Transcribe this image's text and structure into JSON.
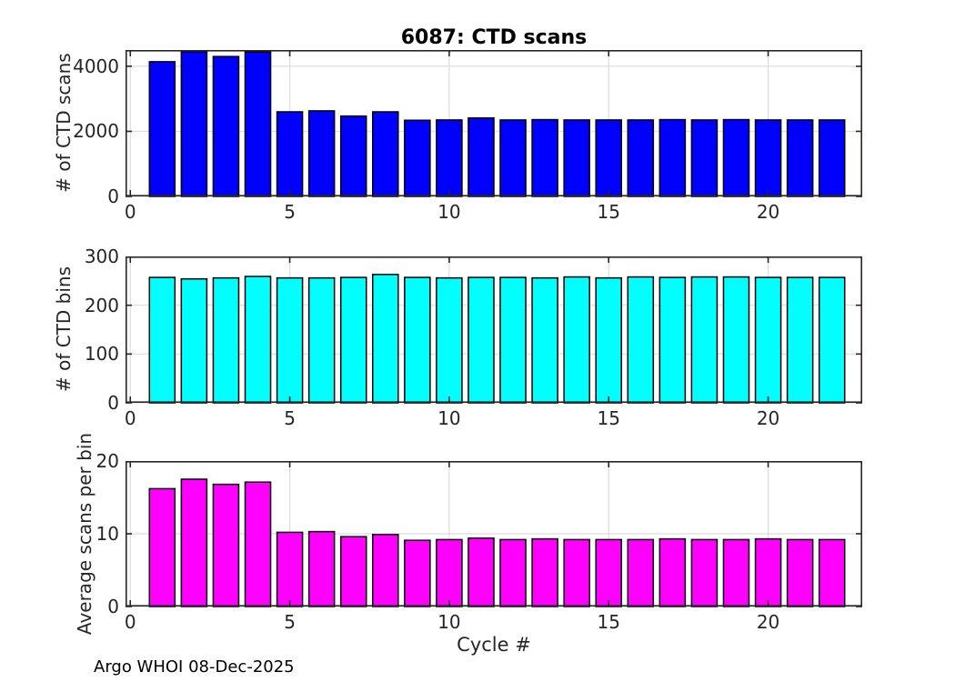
{
  "figure": {
    "title": "6087: CTD scans",
    "xlabel": "Cycle #",
    "footer": "Argo WHOI 08-Dec-2025"
  },
  "colors": {
    "scans_bar": "#0000ff",
    "bins_bar": "#00ffff",
    "avg_bar": "#ff00ff",
    "bar_edge": "#000000",
    "axis_box": "#262626",
    "grid": "#dcdcdc",
    "tick_text": "#262626"
  },
  "chart_data": [
    {
      "type": "bar",
      "title": "6087: CTD scans",
      "ylabel": "# of CTD scans",
      "xlabel": "",
      "x": [
        1,
        2,
        3,
        4,
        5,
        6,
        7,
        8,
        9,
        10,
        11,
        12,
        13,
        14,
        15,
        16,
        17,
        18,
        19,
        20,
        21,
        22
      ],
      "values": [
        4140,
        4450,
        4300,
        4440,
        2600,
        2630,
        2470,
        2600,
        2340,
        2350,
        2410,
        2350,
        2360,
        2350,
        2350,
        2350,
        2360,
        2350,
        2360,
        2350,
        2350,
        2350
      ],
      "xlim": [
        -0.15,
        22.95
      ],
      "ylim": [
        0,
        4500
      ],
      "xticks": [
        0,
        5,
        10,
        15,
        20
      ],
      "yticks": [
        0,
        2000,
        4000
      ],
      "grid": true,
      "legend": null,
      "bar_width": 0.8,
      "bar_color": "#0000ff"
    },
    {
      "type": "bar",
      "title": "",
      "ylabel": "# of CTD bins",
      "xlabel": "",
      "x": [
        1,
        2,
        3,
        4,
        5,
        6,
        7,
        8,
        9,
        10,
        11,
        12,
        13,
        14,
        15,
        16,
        17,
        18,
        19,
        20,
        21,
        22
      ],
      "values": [
        257,
        254,
        256,
        259,
        256,
        256,
        257,
        263,
        257,
        256,
        257,
        257,
        256,
        258,
        256,
        258,
        257,
        258,
        258,
        257,
        257,
        257
      ],
      "xlim": [
        -0.15,
        22.95
      ],
      "ylim": [
        0,
        300
      ],
      "xticks": [
        0,
        5,
        10,
        15,
        20
      ],
      "yticks": [
        0,
        100,
        200,
        300
      ],
      "grid": true,
      "legend": null,
      "bar_width": 0.8,
      "bar_color": "#00ffff"
    },
    {
      "type": "bar",
      "title": "",
      "ylabel": "Average scans per bin",
      "xlabel": "Cycle #",
      "x": [
        1,
        2,
        3,
        4,
        5,
        6,
        7,
        8,
        9,
        10,
        11,
        12,
        13,
        14,
        15,
        16,
        17,
        18,
        19,
        20,
        21,
        22
      ],
      "values": [
        16.2,
        17.5,
        16.8,
        17.1,
        10.2,
        10.3,
        9.6,
        9.9,
        9.1,
        9.2,
        9.4,
        9.2,
        9.3,
        9.2,
        9.2,
        9.2,
        9.3,
        9.2,
        9.2,
        9.3,
        9.2,
        9.2
      ],
      "xlim": [
        -0.15,
        22.95
      ],
      "ylim": [
        0,
        20
      ],
      "xticks": [
        0,
        5,
        10,
        15,
        20
      ],
      "yticks": [
        0,
        10,
        20
      ],
      "grid": true,
      "legend": null,
      "bar_width": 0.8,
      "bar_color": "#ff00ff"
    }
  ]
}
